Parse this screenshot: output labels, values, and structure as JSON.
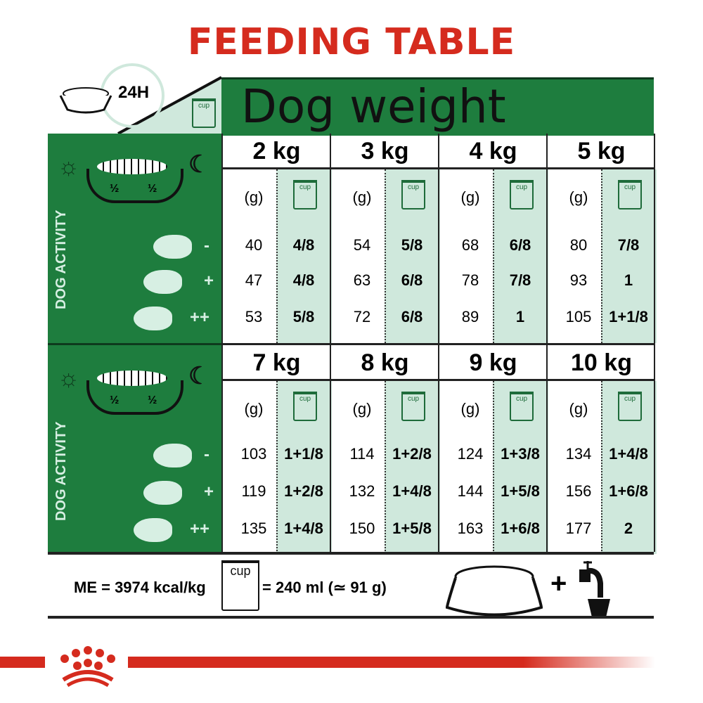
{
  "title": "FEEDING TABLE",
  "corner": {
    "duration": "24H",
    "cup_label": "cup"
  },
  "header": "Dog weight",
  "activity_label": "DOG ACTIVITY",
  "half_label": "½",
  "activity_levels": [
    "-",
    "+",
    "++"
  ],
  "unit_grams": "(g)",
  "colors": {
    "green": "#1e7d3e",
    "light_green": "#cfe8dc",
    "red": "#d52b1e"
  },
  "sections": [
    {
      "weights": [
        {
          "label": "2 kg",
          "grams": [
            "40",
            "47",
            "53"
          ],
          "cups": [
            "4/8",
            "4/8",
            "5/8"
          ]
        },
        {
          "label": "3 kg",
          "grams": [
            "54",
            "63",
            "72"
          ],
          "cups": [
            "5/8",
            "6/8",
            "6/8"
          ]
        },
        {
          "label": "4 kg",
          "grams": [
            "68",
            "78",
            "89"
          ],
          "cups": [
            "6/8",
            "7/8",
            "1"
          ]
        },
        {
          "label": "5 kg",
          "grams": [
            "80",
            "93",
            "105"
          ],
          "cups": [
            "7/8",
            "1",
            "1+1/8"
          ]
        }
      ]
    },
    {
      "weights": [
        {
          "label": "7 kg",
          "grams": [
            "103",
            "119",
            "135"
          ],
          "cups": [
            "1+1/8",
            "1+2/8",
            "1+4/8"
          ]
        },
        {
          "label": "8 kg",
          "grams": [
            "114",
            "132",
            "150"
          ],
          "cups": [
            "1+2/8",
            "1+4/8",
            "1+5/8"
          ]
        },
        {
          "label": "9 kg",
          "grams": [
            "124",
            "144",
            "163"
          ],
          "cups": [
            "1+3/8",
            "1+5/8",
            "1+6/8"
          ]
        },
        {
          "label": "10 kg",
          "grams": [
            "134",
            "156",
            "177"
          ],
          "cups": [
            "1+4/8",
            "1+6/8",
            "2"
          ]
        }
      ]
    }
  ],
  "footer": {
    "energy": "ME = 3974 kcal/kg",
    "cup_label": "cup",
    "cup_equiv": "= 240 ml (≃ 91 g)",
    "plus": "+"
  }
}
